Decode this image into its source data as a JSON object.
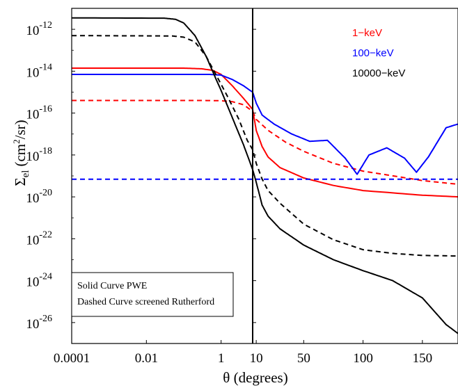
{
  "chart_data": {
    "type": "line",
    "xlabel": "θ (degrees)",
    "ylabel": "Σel (cm²/sr)",
    "ylabel_parts": {
      "sigma": "Σ",
      "sub": "el",
      "open": "(cm",
      "sup": "2",
      "close": "/sr)"
    },
    "y_scale": "log",
    "ylim": [
      1e-27,
      1e-11
    ],
    "x_axis": {
      "left_panel": {
        "scale": "log",
        "range": [
          0.0001,
          7
        ],
        "ticks": [
          0.0001,
          0.01,
          1
        ],
        "tick_labels": [
          "0.0001",
          "0.01",
          "1"
        ]
      },
      "right_panel": {
        "scale": "linear",
        "range": [
          7,
          180
        ],
        "ticks": [
          10,
          50,
          100,
          150
        ],
        "tick_labels": [
          "10",
          "50",
          "100",
          "150"
        ]
      }
    },
    "y_ticks": [
      {
        "base": "10",
        "exp": "-12",
        "value": 1e-12
      },
      {
        "base": "10",
        "exp": "-14",
        "value": 1e-14
      },
      {
        "base": "10",
        "exp": "-16",
        "value": 1e-16
      },
      {
        "base": "10",
        "exp": "-18",
        "value": 1e-18
      },
      {
        "base": "10",
        "exp": "-20",
        "value": 1e-20
      },
      {
        "base": "10",
        "exp": "-22",
        "value": 1e-22
      },
      {
        "base": "10",
        "exp": "-24",
        "value": 1e-24
      },
      {
        "base": "10",
        "exp": "-26",
        "value": 1e-26
      }
    ],
    "legend": {
      "placement": "top-right",
      "entries": [
        {
          "label": "1−keV",
          "color": "#ff0000"
        },
        {
          "label": "100−keV",
          "color": "#0000ff"
        },
        {
          "label": "10000−keV",
          "color": "#000000"
        }
      ]
    },
    "annotation": {
      "placement": "bottom-left",
      "lines": [
        "Solid Curve PWE",
        "Dashed Curve screened Rutherford"
      ]
    },
    "series": [
      {
        "energy": "1−keV",
        "style": "solid",
        "color": "#ff0000",
        "points": [
          [
            0.0001,
            1.4e-14
          ],
          [
            0.1,
            1.4e-14
          ],
          [
            0.3,
            1.3e-14
          ],
          [
            0.6,
            1.1e-14
          ],
          [
            1,
            7e-15
          ],
          [
            2,
            2e-15
          ],
          [
            4,
            5e-16
          ],
          [
            7,
            1.5e-16
          ],
          [
            10,
            1.5e-17
          ],
          [
            15,
            2.5e-18
          ],
          [
            20,
            8e-19
          ],
          [
            30,
            2.5e-19
          ],
          [
            50,
            8e-20
          ],
          [
            75,
            3.5e-20
          ],
          [
            100,
            2e-20
          ],
          [
            150,
            1.2e-20
          ],
          [
            180,
            1e-20
          ]
        ]
      },
      {
        "energy": "1−keV",
        "style": "dashed",
        "color": "#ff0000",
        "points": [
          [
            0.0001,
            4e-16
          ],
          [
            0.3,
            4e-16
          ],
          [
            1,
            3.9e-16
          ],
          [
            2,
            3.5e-16
          ],
          [
            4,
            2.5e-16
          ],
          [
            7,
            1.2e-16
          ],
          [
            10,
            5e-17
          ],
          [
            20,
            1.5e-17
          ],
          [
            35,
            4e-18
          ],
          [
            50,
            1.5e-18
          ],
          [
            75,
            4e-19
          ],
          [
            100,
            1.7e-19
          ],
          [
            150,
            6e-20
          ],
          [
            180,
            4e-20
          ]
        ]
      },
      {
        "energy": "100−keV",
        "style": "solid",
        "color": "#0000ff",
        "points": [
          [
            0.0001,
            7e-15
          ],
          [
            0.5,
            7e-15
          ],
          [
            1,
            6.5e-15
          ],
          [
            2,
            4e-15
          ],
          [
            4,
            2e-15
          ],
          [
            6,
            1.2e-15
          ],
          [
            7,
            1e-15
          ],
          [
            10,
            3e-16
          ],
          [
            15,
            8e-17
          ],
          [
            25,
            3e-17
          ],
          [
            40,
            1e-17
          ],
          [
            55,
            4.5e-18
          ],
          [
            70,
            5e-18
          ],
          [
            85,
            7e-19
          ],
          [
            95,
            1.2e-19
          ],
          [
            105,
            1e-18
          ],
          [
            120,
            2.2e-18
          ],
          [
            135,
            7e-19
          ],
          [
            145,
            1.5e-19
          ],
          [
            155,
            8e-19
          ],
          [
            170,
            2e-17
          ],
          [
            180,
            3e-17
          ]
        ]
      },
      {
        "energy": "100−keV",
        "style": "dashed",
        "color": "#0000ff",
        "points": [
          [
            0.0001,
            7e-20
          ],
          [
            7,
            7e-20
          ],
          [
            100,
            7e-20
          ],
          [
            180,
            7e-20
          ]
        ]
      },
      {
        "energy": "10000−keV",
        "style": "solid",
        "color": "#000000",
        "points": [
          [
            0.0001,
            3.5e-12
          ],
          [
            0.03,
            3.4e-12
          ],
          [
            0.06,
            3e-12
          ],
          [
            0.1,
            2e-12
          ],
          [
            0.2,
            5e-13
          ],
          [
            0.4,
            5e-14
          ],
          [
            0.7,
            5e-15
          ],
          [
            1,
            1.2e-15
          ],
          [
            2,
            6e-17
          ],
          [
            4,
            3e-18
          ],
          [
            7,
            2e-19
          ],
          [
            10,
            5e-20
          ],
          [
            15,
            4e-21
          ],
          [
            20,
            1.2e-21
          ],
          [
            30,
            3e-22
          ],
          [
            50,
            5e-23
          ],
          [
            75,
            1e-23
          ],
          [
            100,
            3e-24
          ],
          [
            125,
            1e-24
          ],
          [
            150,
            1.5e-25
          ],
          [
            170,
            8e-27
          ],
          [
            180,
            3e-27
          ]
        ]
      },
      {
        "energy": "10000−keV",
        "style": "dashed",
        "color": "#000000",
        "points": [
          [
            0.0001,
            5e-13
          ],
          [
            0.05,
            4.8e-13
          ],
          [
            0.1,
            4.2e-13
          ],
          [
            0.2,
            2.5e-13
          ],
          [
            0.4,
            5e-14
          ],
          [
            0.8,
            5e-15
          ],
          [
            1.5,
            6e-16
          ],
          [
            3,
            5e-17
          ],
          [
            5,
            5e-18
          ],
          [
            7,
            1.8e-18
          ],
          [
            10,
            4e-19
          ],
          [
            15,
            7e-20
          ],
          [
            20,
            2e-20
          ],
          [
            30,
            5e-21
          ],
          [
            50,
            5e-22
          ],
          [
            75,
            9e-23
          ],
          [
            100,
            3e-23
          ],
          [
            125,
            2e-23
          ],
          [
            150,
            1.6e-23
          ],
          [
            180,
            1.5e-23
          ]
        ]
      }
    ]
  }
}
